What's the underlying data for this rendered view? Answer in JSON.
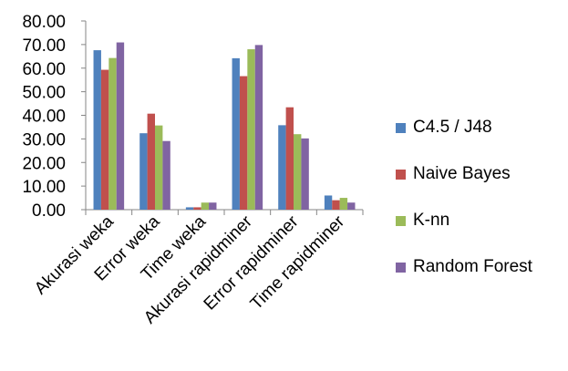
{
  "chart_data": {
    "type": "bar",
    "title": "",
    "xlabel": "",
    "ylabel": "",
    "ylim": [
      0,
      80
    ],
    "ytick_step": 10,
    "ytick_labels": [
      "0.00",
      "10.00",
      "20.00",
      "30.00",
      "40.00",
      "50.00",
      "60.00",
      "70.00",
      "80.00"
    ],
    "grid": false,
    "legend_position": "right",
    "categories": [
      "Akurasi weka",
      "Error weka",
      "Time weka",
      "Akurasi rapidminer",
      "Error rapidminer",
      "Time rapidminer"
    ],
    "series": [
      {
        "name": "C4.5 / J48",
        "color": "#4F81BD",
        "values": [
          67.6,
          32.4,
          1.0,
          64.2,
          35.8,
          6.0
        ]
      },
      {
        "name": "Naive Bayes",
        "color": "#C0504D",
        "values": [
          59.3,
          40.7,
          1.0,
          56.6,
          43.4,
          4.0
        ]
      },
      {
        "name": "K-nn",
        "color": "#9BBB59",
        "values": [
          64.3,
          35.7,
          3.0,
          68.0,
          32.0,
          5.0
        ]
      },
      {
        "name": "Random Forest",
        "color": "#8064A2",
        "values": [
          70.9,
          29.1,
          3.0,
          69.8,
          30.2,
          3.0
        ]
      }
    ]
  }
}
